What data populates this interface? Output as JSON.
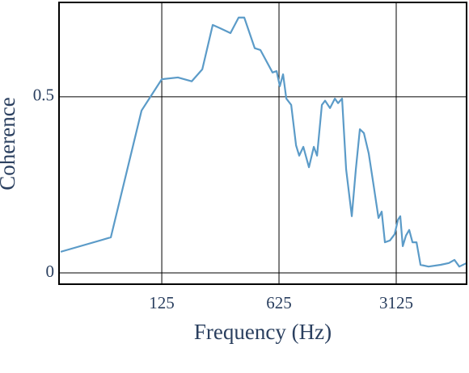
{
  "chart_data": {
    "type": "line",
    "x_label": "Frequency (Hz)",
    "y_label": "Coherence",
    "xscale": "log",
    "grid": true,
    "xlim": [
      30.5,
      8210
    ],
    "ylim": [
      -0.032,
      0.768
    ],
    "xticks": [
      125,
      625,
      3125
    ],
    "yticks": [
      0,
      0.5
    ],
    "x": [
      31.2,
      62.1,
      94.7,
      125,
      156,
      188.5,
      218,
      251.6,
      278,
      321,
      359,
      388,
      448,
      484,
      572,
      605,
      632,
      661,
      691,
      739,
      790,
      825,
      873,
      943,
      1008,
      1054,
      1126,
      1177,
      1259,
      1346,
      1406,
      1486,
      1571,
      1698,
      1795,
      1897,
      2005,
      2143,
      2292,
      2450,
      2560,
      2676,
      2864,
      3060,
      3200,
      3304,
      3419,
      3572,
      3735,
      3907,
      4130,
      4362,
      4870,
      5750,
      6437,
      6950,
      7430,
      8220
    ],
    "series": [
      {
        "color": "#5b9bc8",
        "values": [
          0.06,
          0.101,
          0.461,
          0.55,
          0.555,
          0.544,
          0.578,
          0.704,
          0.695,
          0.681,
          0.725,
          0.725,
          0.638,
          0.633,
          0.569,
          0.573,
          0.53,
          0.564,
          0.495,
          0.477,
          0.362,
          0.333,
          0.358,
          0.3,
          0.358,
          0.333,
          0.477,
          0.489,
          0.468,
          0.495,
          0.482,
          0.495,
          0.294,
          0.161,
          0.294,
          0.408,
          0.397,
          0.339,
          0.248,
          0.156,
          0.174,
          0.087,
          0.092,
          0.11,
          0.151,
          0.161,
          0.076,
          0.106,
          0.122,
          0.087,
          0.087,
          0.023,
          0.018,
          0.023,
          0.028,
          0.037,
          0.018,
          0.028
        ]
      }
    ]
  }
}
